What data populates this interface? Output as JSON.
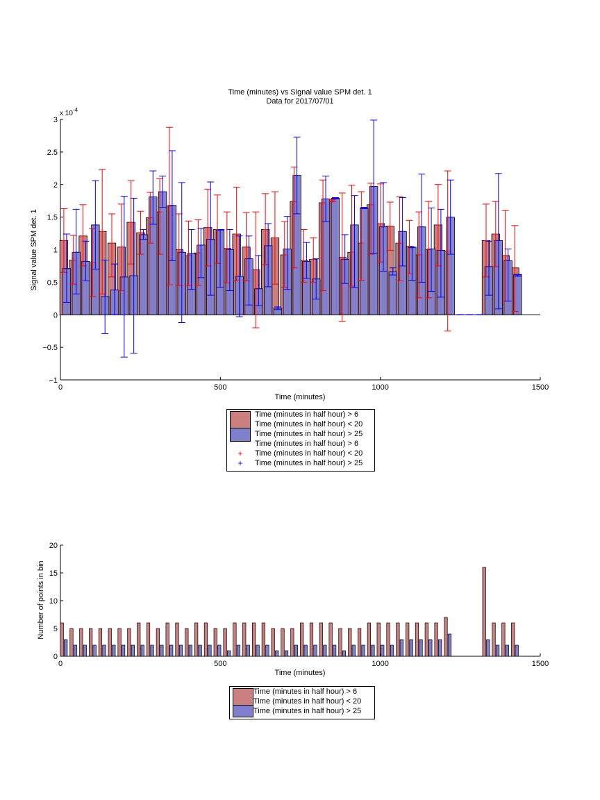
{
  "colors": {
    "red_bar": "#cc7f7f",
    "blue_bar": "#7f7fcc",
    "red_err": "#ff0000",
    "blue_err": "#0000ff"
  },
  "chart_data": [
    {
      "type": "bar",
      "title": "Time (minutes) vs Signal value SPM det. 1",
      "subtitle": "Data for 2017/07/01",
      "xlabel": "Time (minutes)",
      "ylabel": "Signal value SPM det. 1",
      "exponent_label": "x 10",
      "exponent_power": "-4",
      "xlim": [
        0,
        1500
      ],
      "ylim": [
        -1,
        3
      ],
      "xticks": [
        "0",
        "500",
        "1000",
        "1500"
      ],
      "yticks": [
        "−1",
        "−0.5",
        "0",
        "0.5",
        "1",
        "1.5",
        "2",
        "2.5",
        "3"
      ],
      "x": [
        15,
        45,
        75,
        105,
        135,
        165,
        195,
        225,
        255,
        285,
        315,
        345,
        375,
        405,
        435,
        465,
        495,
        525,
        555,
        585,
        615,
        645,
        675,
        705,
        735,
        765,
        795,
        825,
        855,
        885,
        915,
        945,
        975,
        1005,
        1035,
        1065,
        1095,
        1125,
        1155,
        1185,
        1215,
        1245,
        1275,
        1305,
        1335,
        1365,
        1395,
        1425
      ],
      "series": [
        {
          "name": "Time (minutes in half hour) > 6",
          "values": [
            1.14,
            0.84,
            1.21,
            0.8,
            1.28,
            1.1,
            1.04,
            1.42,
            1.26,
            1.49,
            1.58,
            1.67,
            1.0,
            0.91,
            0.95,
            1.34,
            1.31,
            1.02,
            1.24,
            1.04,
            0.69,
            1.31,
            1.18,
            0.92,
            1.74,
            0.83,
            0.85,
            1.72,
            1.75,
            0.88,
            0.96,
            1.1,
            1.69,
            1.4,
            1.36,
            1.1,
            1.05,
            0.92,
            1.0,
            1.38,
            0.98,
            null,
            null,
            null,
            1.14,
            1.24,
            0.91,
            0.72
          ],
          "err_low": [
            0.65,
            0.47,
            0.75,
            0.28,
            0.32,
            0.58,
            0.37,
            0.78,
            0.93,
            1.1,
            0.93,
            0.46,
            0.45,
            0.45,
            0.45,
            0.75,
            0.79,
            0.49,
            0.52,
            0.52,
            -0.2,
            0.77,
            0.47,
            0.42,
            0.72,
            0.5,
            0.5,
            0.37,
            1.77,
            -0.1,
            0.44,
            0.53,
            0.93,
            0.81,
            0.99,
            0.52,
            0.63,
            0.26,
            0.26,
            0.75,
            -0.25,
            null,
            null,
            null,
            0.58,
            0.74,
            0.21,
            0.05
          ],
          "err_high": [
            1.63,
            1.22,
            1.69,
            1.32,
            2.23,
            1.55,
            1.7,
            2.06,
            1.59,
            1.88,
            2.09,
            2.88,
            1.55,
            1.44,
            1.46,
            1.93,
            1.84,
            1.58,
            1.96,
            1.57,
            1.58,
            1.86,
            1.89,
            1.43,
            2.27,
            1.31,
            1.18,
            2.07,
            1.74,
            1.87,
            1.99,
            1.89,
            2.02,
            2.01,
            1.73,
            1.81,
            1.45,
            1.58,
            1.74,
            2.0,
            2.21,
            null,
            null,
            null,
            1.7,
            1.74,
            1.6,
            1.37
          ]
        },
        {
          "name": "Time (minutes in half hour) > 25",
          "values": [
            0.71,
            0.96,
            0.82,
            1.38,
            0.28,
            0.38,
            0.58,
            0.6,
            1.23,
            1.81,
            1.89,
            1.68,
            0.96,
            0.94,
            1.07,
            1.16,
            1.31,
            1.0,
            0.59,
            0.86,
            0.4,
            1.06,
            0.1,
            1.01,
            2.14,
            0.82,
            0.55,
            1.78,
            1.79,
            0.85,
            1.38,
            1.64,
            1.97,
            1.35,
            0.66,
            1.28,
            1.04,
            1.35,
            1.01,
            0.99,
            1.5,
            0.0,
            0.0,
            0.0,
            0.74,
            1.14,
            0.83,
            0.62
          ],
          "err_low": [
            0.19,
            0.32,
            0.52,
            0.7,
            -0.29,
            0.0,
            -0.65,
            -0.59,
            1.16,
            1.39,
            1.65,
            0.83,
            -0.12,
            0.39,
            0.57,
            0.3,
            0.42,
            0.37,
            -0.03,
            0.15,
            0.14,
            0.43,
            0.08,
            0.39,
            1.55,
            0.56,
            0.24,
            1.43,
            1.78,
            0.48,
            0.42,
            1.63,
            0.94,
            0.67,
            0.61,
            0.75,
            0.53,
            0.5,
            0.36,
            0.27,
            0.93,
            0.0,
            0.0,
            0.0,
            0.3,
            0.09,
            0.21,
            0.59
          ],
          "err_high": [
            1.24,
            1.62,
            1.13,
            2.06,
            0.84,
            0.78,
            1.82,
            1.79,
            1.31,
            2.21,
            2.13,
            2.52,
            2.03,
            1.31,
            1.33,
            2.04,
            1.3,
            1.31,
            1.21,
            1.21,
            0.91,
            1.4,
            0.12,
            1.51,
            2.73,
            1.11,
            0.86,
            2.13,
            1.8,
            1.23,
            1.83,
            1.65,
            2.99,
            2.03,
            0.72,
            1.8,
            1.03,
            2.16,
            1.64,
            1.62,
            2.07,
            0.0,
            0.0,
            0.0,
            1.13,
            2.17,
            1.01,
            0.61
          ]
        }
      ],
      "legend": [
        {
          "type": "bar",
          "color": "red_bar",
          "label": "Time (minutes in half hour) > 6"
        },
        {
          "type": "none",
          "label": "Time (minutes in half hour) < 20"
        },
        {
          "type": "bar",
          "color": "blue_bar",
          "label": "Time (minutes in half hour) > 25"
        },
        {
          "type": "none",
          "label": "Time (minutes in half hour) > 6"
        },
        {
          "type": "marker",
          "color": "red_err",
          "symbol": "+",
          "label": "Time (minutes in half hour) < 20"
        },
        {
          "type": "marker",
          "color": "blue_err",
          "symbol": "+",
          "label": "Time (minutes in half hour) > 25"
        }
      ]
    },
    {
      "type": "bar",
      "xlabel": "Time (minutes)",
      "ylabel": "Number of points in bin",
      "xlim": [
        0,
        1500
      ],
      "ylim": [
        0,
        20
      ],
      "xticks": [
        "0",
        "500",
        "1000",
        "1500"
      ],
      "yticks": [
        "0",
        "5",
        "10",
        "15",
        "20"
      ],
      "x": [
        15,
        45,
        75,
        105,
        135,
        165,
        195,
        225,
        255,
        285,
        315,
        345,
        375,
        405,
        435,
        465,
        495,
        525,
        555,
        585,
        615,
        645,
        675,
        705,
        735,
        765,
        795,
        825,
        855,
        885,
        915,
        945,
        975,
        1005,
        1035,
        1065,
        1095,
        1125,
        1155,
        1185,
        1215,
        1245,
        1275,
        1305,
        1335,
        1365,
        1395,
        1425
      ],
      "series": [
        {
          "name": "Time (minutes in half hour) > 6",
          "values": [
            6,
            5,
            5,
            5,
            5,
            5,
            5,
            5,
            6,
            6,
            5,
            6,
            6,
            5,
            6,
            6,
            5,
            5,
            6,
            6,
            6,
            6,
            5,
            5,
            5,
            6,
            6,
            6,
            6,
            5,
            5,
            5,
            6,
            6,
            6,
            6,
            6,
            6,
            6,
            6,
            7,
            0,
            0,
            0,
            16,
            6,
            6,
            6
          ]
        },
        {
          "name": "Time (minutes in half hour) > 25",
          "values": [
            3,
            2,
            2,
            2,
            2,
            2,
            2,
            2,
            2,
            2,
            2,
            2,
            2,
            2,
            2,
            2,
            2,
            1,
            2,
            2,
            2,
            2,
            1,
            1,
            2,
            2,
            2,
            2,
            2,
            1,
            2,
            2,
            2,
            2,
            2,
            3,
            3,
            3,
            3,
            3,
            4,
            0,
            0,
            0,
            3,
            2,
            2,
            2
          ]
        }
      ],
      "legend": [
        {
          "type": "bar",
          "color": "red_bar",
          "label": "Time (minutes in half hour) > 6"
        },
        {
          "type": "none",
          "label": "Time (minutes in half hour) < 20"
        },
        {
          "type": "bar",
          "color": "blue_bar",
          "label": "Time (minutes in half hour) > 25"
        }
      ]
    }
  ]
}
